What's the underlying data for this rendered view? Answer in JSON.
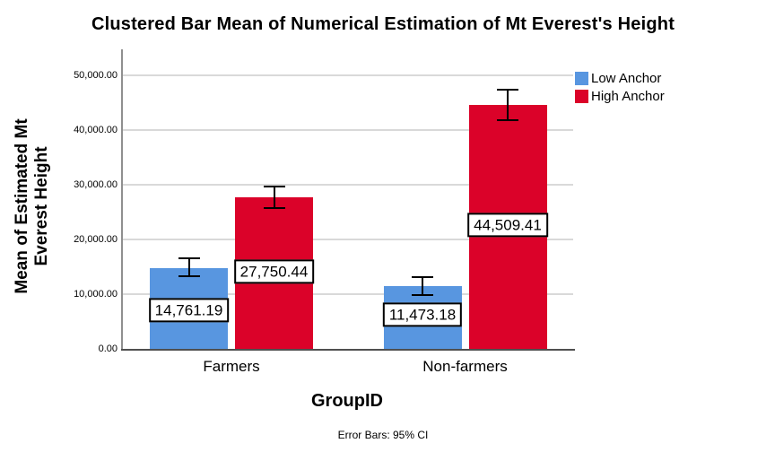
{
  "title": "Clustered Bar Mean of Numerical Estimation of Mt Everest's Height",
  "axes": {
    "x_label": "GroupID",
    "y_label_lines": [
      "Mean of Estimated Mt",
      "Everest Height"
    ],
    "y_ticks": [
      "0.00",
      "10,000.00",
      "20,000.00",
      "30,000.00",
      "40,000.00",
      "50,000.00"
    ]
  },
  "footnote": "Error Bars: 95% CI",
  "legend": {
    "items": [
      {
        "label": "Low Anchor",
        "color": "#5896E0"
      },
      {
        "label": "High Anchor",
        "color": "#DB0229"
      }
    ]
  },
  "chart_data": {
    "type": "bar",
    "title": "Clustered Bar Mean of Numerical Estimation of Mt Everest's Height",
    "categories": [
      "Farmers",
      "Non-farmers"
    ],
    "series": [
      {
        "name": "Low Anchor",
        "color": "#5896E0",
        "values": [
          14761.19,
          11473.18
        ],
        "value_labels": [
          "14,761.19",
          "11,473.18"
        ],
        "ci_low": [
          13300,
          9850
        ],
        "ci_high": [
          16550,
          13100
        ]
      },
      {
        "name": "High Anchor",
        "color": "#DB0229",
        "values": [
          27750.44,
          44509.41
        ],
        "value_labels": [
          "27,750.44",
          "44,509.41"
        ],
        "ci_low": [
          25750,
          41800
        ],
        "ci_high": [
          29700,
          47350
        ]
      }
    ],
    "xlabel": "GroupID",
    "ylabel": "Mean of Estimated Mt Everest Height",
    "ylim": [
      0,
      50000
    ],
    "ytick_interval": 10000,
    "grid": true,
    "legend_position": "top-right",
    "error_bars": "95% CI"
  }
}
